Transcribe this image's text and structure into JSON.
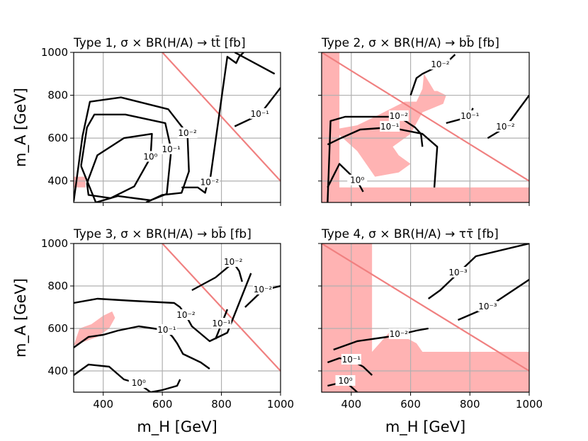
{
  "chart_data": [
    {
      "type": "line",
      "title": "Type 1, σ × BR(H/A) → tt̄ [fb]",
      "xlabel": "",
      "ylabel": "m_A [GeV]",
      "xlim": [
        300,
        1000
      ],
      "ylim": [
        300,
        1000
      ],
      "xticks": [],
      "yticks": [
        "400",
        "600",
        "800",
        "1000"
      ],
      "grid": true,
      "diagonal": {
        "x": [
          600,
          1000
        ],
        "y": [
          1000,
          400
        ]
      },
      "excluded_regions": [
        {
          "x": [
            300,
            300,
            340,
            340
          ],
          "y": [
            370,
            420,
            420,
            370
          ]
        }
      ],
      "contours": [
        {
          "label": "10⁰",
          "x": [
            345,
            380,
            470,
            565,
            560,
            505,
            425,
            350,
            345
          ],
          "y": [
            390,
            520,
            600,
            620,
            510,
            375,
            320,
            335,
            390
          ]
        },
        {
          "label": "10⁻¹",
          "x": [
            325,
            345,
            370,
            475,
            610,
            630,
            615,
            560,
            450,
            375,
            325
          ],
          "y": [
            470,
            650,
            710,
            710,
            670,
            545,
            340,
            310,
            330,
            300,
            470
          ]
        },
        {
          "label": "10⁻²",
          "x": [
            300,
            330,
            355,
            460,
            620,
            685,
            690,
            665,
            600,
            545
          ],
          "y": [
            305,
            610,
            770,
            790,
            735,
            620,
            445,
            345,
            335,
            300
          ]
        },
        {
          "label": "10⁻²",
          "x": [
            665,
            720,
            745,
            750,
            760,
            820,
            850,
            860,
            875
          ],
          "y": [
            370,
            370,
            345,
            375,
            390,
            980,
            950,
            980,
            1000
          ]
        },
        {
          "label": "10⁻¹",
          "x": [
            845,
            930,
            1000
          ],
          "y": [
            655,
            710,
            835
          ]
        },
        {
          "label": "",
          "x": [
            845,
            980
          ],
          "y": [
            1000,
            900
          ]
        }
      ]
    },
    {
      "type": "line",
      "title": "Type 2, σ × BR(H/A) → bb̄ [fb]",
      "xlabel": "",
      "ylabel": "",
      "xlim": [
        300,
        1000
      ],
      "ylim": [
        300,
        1000
      ],
      "xticks": [],
      "yticks": [],
      "grid": true,
      "diagonal": {
        "x": [
          300,
          1000
        ],
        "y": [
          1000,
          400
        ]
      },
      "excluded_regions": [
        {
          "x": [
            300,
            360,
            360,
            300
          ],
          "y": [
            300,
            300,
            1000,
            1000
          ]
        },
        {
          "x": [
            300,
            1000,
            1000,
            300
          ],
          "y": [
            300,
            300,
            370,
            370
          ]
        },
        {
          "x": [
            340,
            420,
            480,
            580,
            620,
            640,
            645,
            680,
            690,
            720,
            710,
            640,
            600,
            560,
            540,
            560,
            600,
            560,
            480,
            420,
            340
          ],
          "y": [
            640,
            660,
            700,
            770,
            770,
            830,
            900,
            820,
            820,
            800,
            760,
            720,
            620,
            580,
            560,
            520,
            480,
            440,
            420,
            540,
            640
          ]
        }
      ],
      "contours": [
        {
          "label": "10⁰",
          "x": [
            320,
            360,
            420,
            440
          ],
          "y": [
            370,
            480,
            400,
            350
          ]
        },
        {
          "label": "10⁻¹",
          "x": [
            320,
            365,
            430,
            530,
            640,
            690,
            680
          ],
          "y": [
            570,
            600,
            640,
            650,
            620,
            560,
            370
          ]
        },
        {
          "label": "10⁻²",
          "x": [
            320,
            330,
            380,
            490,
            560,
            615,
            635,
            640
          ],
          "y": [
            300,
            680,
            700,
            700,
            700,
            650,
            620,
            560
          ]
        },
        {
          "label": "10⁻²",
          "x": [
            600,
            620,
            640,
            700,
            720,
            750
          ],
          "y": [
            800,
            880,
            900,
            940,
            950,
            990
          ]
        },
        {
          "label": "10⁻¹",
          "x": [
            720,
            800,
            810
          ],
          "y": [
            670,
            700,
            740
          ]
        },
        {
          "label": "10⁻²",
          "x": [
            860,
            920,
            1000
          ],
          "y": [
            600,
            650,
            800
          ]
        }
      ]
    },
    {
      "type": "line",
      "title": "Type 3, σ × BR(H/A) → bb̄ [fb]",
      "xlabel": "m_H [GeV]",
      "ylabel": "m_A [GeV]",
      "xlim": [
        300,
        1000
      ],
      "ylim": [
        300,
        1000
      ],
      "xticks": [
        "400",
        "600",
        "800",
        "1000"
      ],
      "yticks": [
        "400",
        "600",
        "800",
        "1000"
      ],
      "grid": true,
      "diagonal": {
        "x": [
          600,
          1000
        ],
        "y": [
          1000,
          400
        ]
      },
      "excluded_regions": [
        {
          "x": [
            300,
            320,
            360,
            400,
            430,
            440,
            420,
            380,
            300
          ],
          "y": [
            520,
            600,
            620,
            660,
            680,
            650,
            600,
            560,
            520
          ]
        }
      ],
      "contours": [
        {
          "label": "10⁰",
          "x": [
            300,
            350,
            420,
            470,
            520,
            560,
            600,
            650,
            660
          ],
          "y": [
            380,
            430,
            420,
            360,
            340,
            300,
            310,
            330,
            360
          ]
        },
        {
          "label": "10⁻¹",
          "x": [
            300,
            350,
            400,
            450,
            520,
            570,
            615,
            635,
            650,
            670,
            700,
            730,
            760
          ],
          "y": [
            510,
            560,
            570,
            590,
            610,
            600,
            590,
            560,
            530,
            480,
            460,
            440,
            410
          ]
        },
        {
          "label": "10⁻²",
          "x": [
            300,
            380,
            500,
            640,
            660,
            680,
            700,
            760,
            820,
            860,
            900
          ],
          "y": [
            720,
            740,
            730,
            720,
            700,
            660,
            610,
            540,
            580,
            720,
            860
          ]
        },
        {
          "label": "10⁻²",
          "x": [
            700,
            780,
            840,
            860,
            870
          ],
          "y": [
            780,
            840,
            910,
            870,
            820
          ]
        },
        {
          "label": "10⁻¹",
          "x": [
            780,
            800,
            820
          ],
          "y": [
            550,
            620,
            690
          ]
        },
        {
          "label": "10⁻²",
          "x": [
            880,
            940,
            1000
          ],
          "y": [
            700,
            780,
            800
          ]
        }
      ]
    },
    {
      "type": "line",
      "title": "Type 4, σ × BR(H/A) → ττ̄ [fb]",
      "xlabel": "m_H [GeV]",
      "ylabel": "",
      "xlim": [
        300,
        1000
      ],
      "ylim": [
        300,
        1000
      ],
      "xticks": [
        "400",
        "600",
        "800",
        "1000"
      ],
      "yticks": [],
      "grid": true,
      "diagonal": {
        "x": [
          300,
          1000
        ],
        "y": [
          1000,
          400
        ]
      },
      "excluded_regions": [
        {
          "x": [
            300,
            470,
            470,
            300
          ],
          "y": [
            300,
            300,
            1000,
            1000
          ]
        },
        {
          "x": [
            300,
            1000,
            1000,
            300
          ],
          "y": [
            300,
            300,
            490,
            490
          ]
        },
        {
          "x": [
            470,
            540,
            560,
            580,
            620,
            640,
            470
          ],
          "y": [
            490,
            600,
            580,
            560,
            530,
            490,
            490
          ]
        }
      ],
      "contours": [
        {
          "label": "10⁰",
          "x": [
            320,
            380,
            420
          ],
          "y": [
            330,
            350,
            300
          ]
        },
        {
          "label": "10⁻¹",
          "x": [
            320,
            360,
            400,
            440,
            470
          ],
          "y": [
            440,
            460,
            450,
            420,
            380
          ]
        },
        {
          "label": "10⁻²",
          "x": [
            340,
            420,
            520,
            560,
            620,
            660
          ],
          "y": [
            500,
            540,
            560,
            570,
            590,
            600
          ]
        },
        {
          "label": "10⁻³",
          "x": [
            660,
            700,
            760,
            820,
            1000
          ],
          "y": [
            740,
            780,
            860,
            940,
            1000
          ]
        },
        {
          "label": "10⁻³",
          "x": [
            760,
            860,
            1000
          ],
          "y": [
            640,
            700,
            830
          ]
        }
      ]
    }
  ]
}
